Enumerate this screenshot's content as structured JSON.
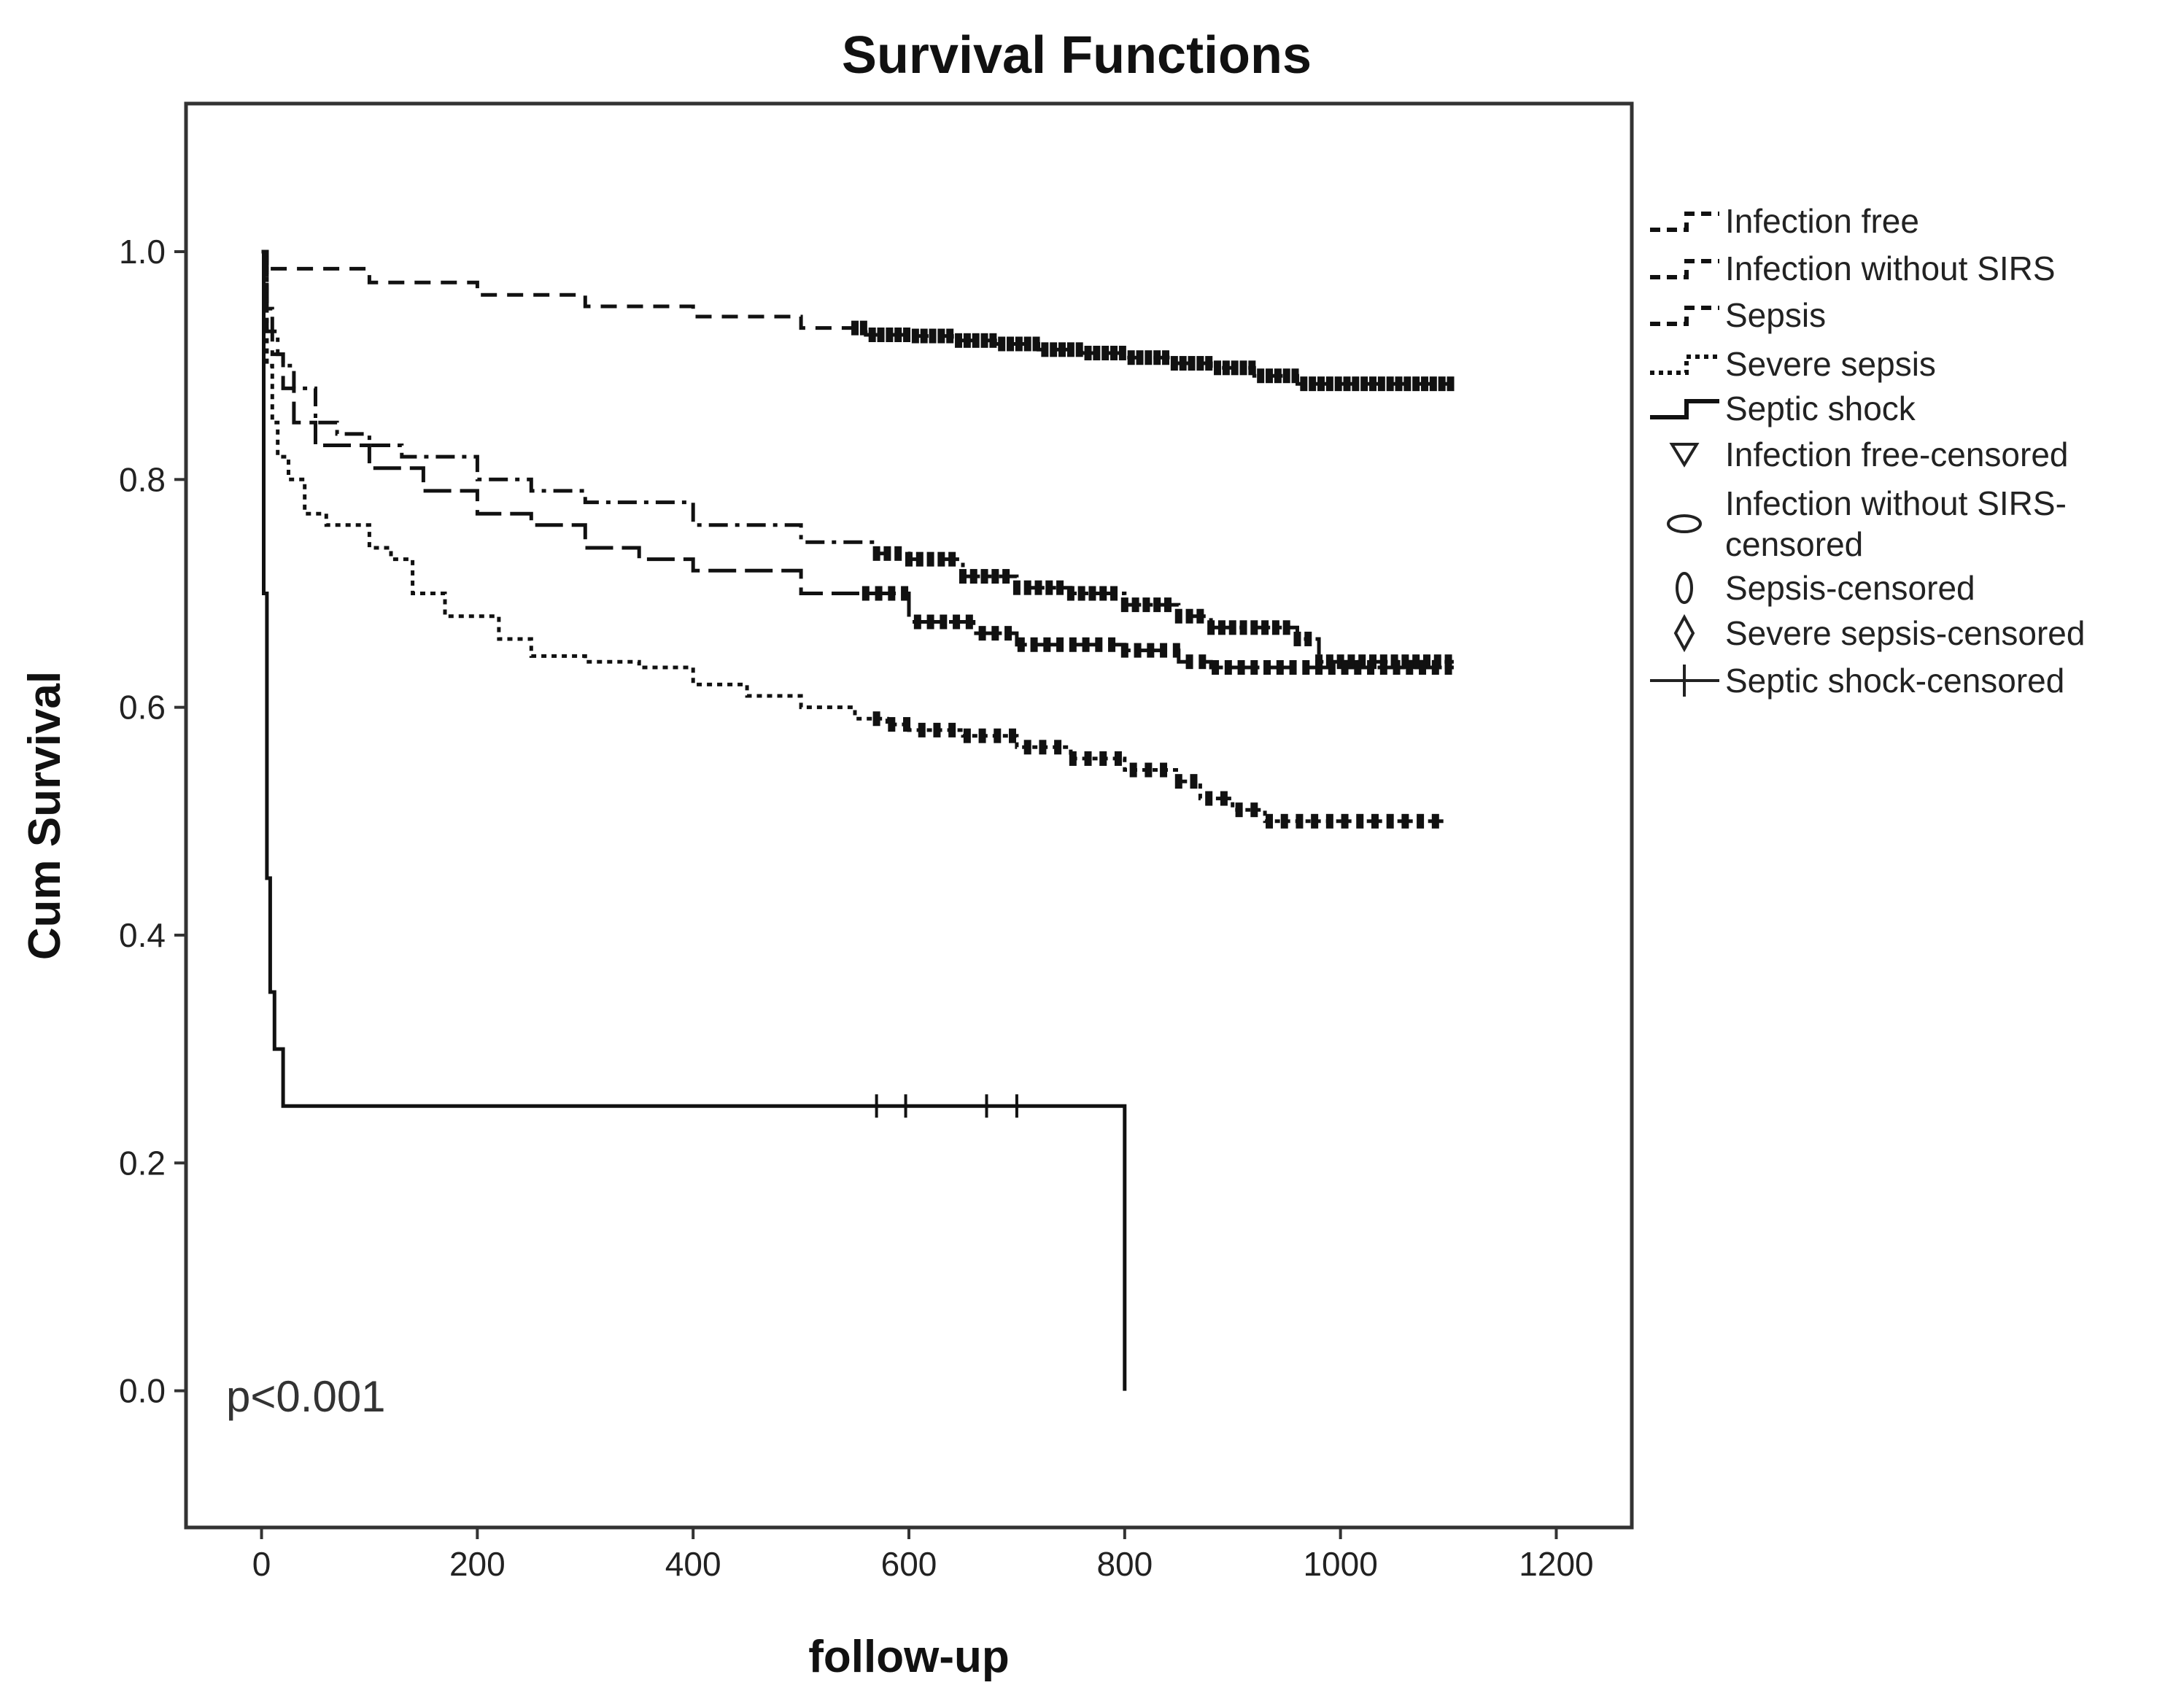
{
  "chart_data": {
    "type": "line",
    "title": "Survival Functions",
    "xlabel": "follow-up",
    "ylabel": "Cum Survival",
    "xlim": [
      -70,
      1270
    ],
    "ylim": [
      -0.12,
      1.13
    ],
    "xticks": [
      0,
      200,
      400,
      600,
      800,
      1000,
      1200
    ],
    "xtick_labels": [
      "0",
      "200",
      "400",
      "600",
      "800",
      "1000",
      "1200"
    ],
    "yticks": [
      0.0,
      0.2,
      0.4,
      0.6,
      0.8,
      1.0
    ],
    "ytick_labels": [
      "0.0",
      "0.2",
      "0.4",
      "0.6",
      "0.8",
      "1.0"
    ],
    "grid": false,
    "legend_position": "right",
    "annotation": "p<0.001",
    "series": [
      {
        "name": "Infection free",
        "style": "dashed",
        "color": "#111111",
        "points": [
          [
            0,
            1.0
          ],
          [
            2,
            0.985
          ],
          [
            100,
            0.973
          ],
          [
            200,
            0.962
          ],
          [
            300,
            0.952
          ],
          [
            400,
            0.943
          ],
          [
            500,
            0.933
          ],
          [
            560,
            0.927
          ],
          [
            600,
            0.926
          ],
          [
            640,
            0.922
          ],
          [
            680,
            0.919
          ],
          [
            720,
            0.914
          ],
          [
            760,
            0.911
          ],
          [
            800,
            0.907
          ],
          [
            840,
            0.902
          ],
          [
            880,
            0.898
          ],
          [
            920,
            0.891
          ],
          [
            960,
            0.884
          ],
          [
            1000,
            0.884
          ],
          [
            1105,
            0.884
          ]
        ],
        "censored_marks": {
          "from": 550,
          "to": 1105,
          "step": 8
        }
      },
      {
        "name": "Infection without SIRS",
        "style": "dash-dot",
        "color": "#111111",
        "points": [
          [
            0,
            1.0
          ],
          [
            5,
            0.95
          ],
          [
            10,
            0.93
          ],
          [
            15,
            0.91
          ],
          [
            20,
            0.9
          ],
          [
            30,
            0.88
          ],
          [
            50,
            0.85
          ],
          [
            70,
            0.84
          ],
          [
            100,
            0.83
          ],
          [
            130,
            0.82
          ],
          [
            200,
            0.8
          ],
          [
            250,
            0.79
          ],
          [
            300,
            0.78
          ],
          [
            400,
            0.76
          ],
          [
            500,
            0.745
          ],
          [
            570,
            0.735
          ],
          [
            600,
            0.73
          ],
          [
            650,
            0.715
          ],
          [
            700,
            0.705
          ],
          [
            750,
            0.7
          ],
          [
            800,
            0.69
          ],
          [
            850,
            0.68
          ],
          [
            880,
            0.67
          ],
          [
            960,
            0.66
          ],
          [
            980,
            0.64
          ],
          [
            1105,
            0.64
          ]
        ],
        "censored_marks": {
          "from": 570,
          "to": 1105,
          "step": 10
        }
      },
      {
        "name": "Sepsis",
        "style": "long-dash",
        "color": "#111111",
        "points": [
          [
            0,
            1.0
          ],
          [
            5,
            0.93
          ],
          [
            10,
            0.91
          ],
          [
            20,
            0.88
          ],
          [
            30,
            0.85
          ],
          [
            50,
            0.83
          ],
          [
            100,
            0.81
          ],
          [
            150,
            0.79
          ],
          [
            200,
            0.77
          ],
          [
            250,
            0.76
          ],
          [
            300,
            0.74
          ],
          [
            350,
            0.73
          ],
          [
            400,
            0.72
          ],
          [
            500,
            0.7
          ],
          [
            600,
            0.675
          ],
          [
            660,
            0.665
          ],
          [
            700,
            0.655
          ],
          [
            800,
            0.65
          ],
          [
            850,
            0.64
          ],
          [
            880,
            0.635
          ],
          [
            1000,
            0.635
          ],
          [
            1105,
            0.635
          ]
        ],
        "censored_marks": {
          "from": 560,
          "to": 1105,
          "step": 12
        }
      },
      {
        "name": "Severe sepsis",
        "style": "dotted",
        "color": "#111111",
        "points": [
          [
            0,
            1.0
          ],
          [
            5,
            0.9
          ],
          [
            10,
            0.85
          ],
          [
            15,
            0.82
          ],
          [
            25,
            0.8
          ],
          [
            40,
            0.77
          ],
          [
            60,
            0.76
          ],
          [
            100,
            0.74
          ],
          [
            120,
            0.73
          ],
          [
            140,
            0.7
          ],
          [
            170,
            0.68
          ],
          [
            220,
            0.66
          ],
          [
            250,
            0.645
          ],
          [
            300,
            0.64
          ],
          [
            350,
            0.635
          ],
          [
            400,
            0.62
          ],
          [
            450,
            0.61
          ],
          [
            500,
            0.6
          ],
          [
            550,
            0.59
          ],
          [
            580,
            0.585
          ],
          [
            600,
            0.58
          ],
          [
            650,
            0.575
          ],
          [
            700,
            0.565
          ],
          [
            750,
            0.555
          ],
          [
            800,
            0.545
          ],
          [
            850,
            0.535
          ],
          [
            870,
            0.52
          ],
          [
            900,
            0.51
          ],
          [
            930,
            0.5
          ],
          [
            1100,
            0.5
          ]
        ],
        "censored_marks": {
          "from": 570,
          "to": 1100,
          "step": 14
        }
      },
      {
        "name": "Septic shock",
        "style": "solid",
        "color": "#111111",
        "points": [
          [
            0,
            1.0
          ],
          [
            2,
            0.7
          ],
          [
            5,
            0.45
          ],
          [
            8,
            0.35
          ],
          [
            12,
            0.3
          ],
          [
            20,
            0.25
          ],
          [
            560,
            0.25
          ],
          [
            800,
            0.25
          ],
          [
            800,
            0.0
          ]
        ],
        "censored_marks": {
          "points": [
            570,
            597,
            672,
            700
          ]
        }
      }
    ],
    "legend": [
      {
        "label": "Infection free",
        "symbol": "dashed"
      },
      {
        "label": "Infection without SIRS",
        "symbol": "dash-dot"
      },
      {
        "label": "Sepsis",
        "symbol": "long-dash"
      },
      {
        "label": "Severe sepsis",
        "symbol": "dotted"
      },
      {
        "label": "Septic shock",
        "symbol": "solid"
      },
      {
        "label": "Infection free-censored",
        "symbol": "triangle-down"
      },
      {
        "label": "Infection without SIRS-",
        "label2": "censored",
        "symbol": "ellipse-h"
      },
      {
        "label": "Sepsis-censored",
        "symbol": "ellipse-v"
      },
      {
        "label": "Severe sepsis-censored",
        "symbol": "diamond"
      },
      {
        "label": "Septic shock-censored",
        "symbol": "plus"
      }
    ]
  }
}
